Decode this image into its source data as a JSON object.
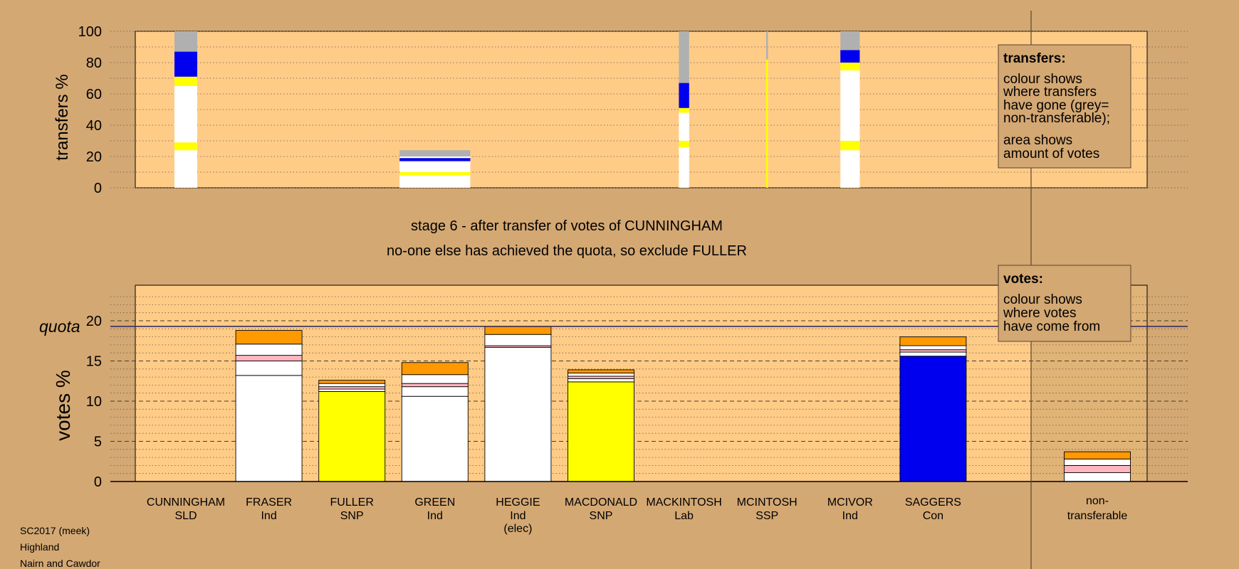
{
  "colors": {
    "page_bg": "#d4a873",
    "plot_bg": "#ffcc88",
    "legend_bg": "#d4a873",
    "quota_line": "#3a2d5c",
    "grey_nontransferable": "#b0b0b0",
    "blue_con": "#0000ee",
    "yellow_snp": "#ffff00",
    "white_ind": "#ffffff",
    "orange": "#ff9900",
    "pink": "#ffb6c1"
  },
  "headline": {
    "line1": "stage 6 - after transfer of votes of CUNNINGHAM",
    "line2": "no-one else has achieved the quota, so exclude FULLER"
  },
  "legend_transfers": {
    "title": "transfers:",
    "lines": [
      "colour shows",
      "where transfers",
      "have gone (grey=",
      "non-transferable);",
      "area shows",
      "amount of votes"
    ]
  },
  "legend_votes": {
    "title": "votes:",
    "lines": [
      "colour shows",
      "where votes",
      "have come from"
    ]
  },
  "quota_label": "quota",
  "candidates": [
    {
      "name": "CUNNINGHAM",
      "party": "SLD",
      "note": ""
    },
    {
      "name": "FRASER",
      "party": "Ind",
      "note": ""
    },
    {
      "name": "FULLER",
      "party": "SNP",
      "note": ""
    },
    {
      "name": "GREEN",
      "party": "Ind",
      "note": ""
    },
    {
      "name": "HEGGIE",
      "party": "Ind",
      "note": "(elec)"
    },
    {
      "name": "MACDONALD",
      "party": "SNP",
      "note": ""
    },
    {
      "name": "MACKINTOSH",
      "party": "Lab",
      "note": ""
    },
    {
      "name": "MCINTOSH",
      "party": "SSP",
      "note": ""
    },
    {
      "name": "MCIVOR",
      "party": "Ind",
      "note": ""
    },
    {
      "name": "SAGGERS",
      "party": "Con",
      "note": ""
    }
  ],
  "nontransferable_label": {
    "line1": "non-",
    "line2": "transferable"
  },
  "footer": [
    "SC2017 (meek)",
    "Highland",
    "Nairn and Cawdor"
  ],
  "chart_data": [
    {
      "type": "bar",
      "stacked": true,
      "ylabel": "transfers %",
      "ylim": [
        0,
        100
      ],
      "yticks": [
        0,
        20,
        40,
        60,
        80,
        100
      ],
      "grid": "dotted, every 10",
      "bars": [
        {
          "name": "CUNNINGHAM",
          "width": 1.0,
          "segments": [
            {
              "color": "white",
              "from": 0,
              "to": 24
            },
            {
              "color": "yellow",
              "from": 24,
              "to": 29
            },
            {
              "color": "white",
              "from": 29,
              "to": 65
            },
            {
              "color": "yellow",
              "from": 65,
              "to": 71
            },
            {
              "color": "blue",
              "from": 71,
              "to": 87
            },
            {
              "color": "grey",
              "from": 87,
              "to": 100
            }
          ]
        },
        {
          "name": "GREEN",
          "width": 3.1,
          "segments": [
            {
              "color": "white",
              "from": 0,
              "to": 8
            },
            {
              "color": "yellow",
              "from": 8,
              "to": 10
            },
            {
              "color": "white",
              "from": 10,
              "to": 17
            },
            {
              "color": "blue",
              "from": 17,
              "to": 19
            },
            {
              "color": "white",
              "from": 19,
              "to": 20
            },
            {
              "color": "grey",
              "from": 20,
              "to": 24
            }
          ]
        },
        {
          "name": "MACKINTOSH",
          "width": 0.45,
          "segments": [
            {
              "color": "white",
              "from": 0,
              "to": 26
            },
            {
              "color": "yellow",
              "from": 26,
              "to": 30
            },
            {
              "color": "white",
              "from": 30,
              "to": 48
            },
            {
              "color": "yellow",
              "from": 48,
              "to": 51
            },
            {
              "color": "blue",
              "from": 51,
              "to": 67
            },
            {
              "color": "grey",
              "from": 67,
              "to": 100
            }
          ]
        },
        {
          "name": "MCINTOSH",
          "width": 0.08,
          "segments": [
            {
              "color": "yellow",
              "from": 0,
              "to": 82
            },
            {
              "color": "grey",
              "from": 82,
              "to": 100
            }
          ]
        },
        {
          "name": "MCIVOR",
          "width": 0.85,
          "segments": [
            {
              "color": "white",
              "from": 0,
              "to": 24
            },
            {
              "color": "yellow",
              "from": 24,
              "to": 30
            },
            {
              "color": "white",
              "from": 30,
              "to": 75
            },
            {
              "color": "yellow",
              "from": 75,
              "to": 80
            },
            {
              "color": "blue",
              "from": 80,
              "to": 88
            },
            {
              "color": "grey",
              "from": 88,
              "to": 100
            }
          ]
        }
      ]
    },
    {
      "type": "bar",
      "stacked": true,
      "ylabel": "votes %",
      "ylim": [
        0,
        20
      ],
      "yticks": [
        0,
        5,
        10,
        15,
        20
      ],
      "quota": 19.3,
      "grid": "dashed every 5, dotted every 1",
      "bars": [
        {
          "name": "FRASER",
          "segments": [
            {
              "color": "white",
              "from": 0,
              "to": 13.2
            },
            {
              "color": "white",
              "from": 13.2,
              "to": 15
            },
            {
              "color": "pink",
              "from": 15,
              "to": 15.7
            },
            {
              "color": "white",
              "from": 15.7,
              "to": 17.1
            },
            {
              "color": "orange",
              "from": 17.1,
              "to": 18.8
            }
          ]
        },
        {
          "name": "FULLER",
          "segments": [
            {
              "color": "yellow",
              "from": 0,
              "to": 11.2
            },
            {
              "color": "white",
              "from": 11.2,
              "to": 11.5
            },
            {
              "color": "pink",
              "from": 11.5,
              "to": 11.8
            },
            {
              "color": "white",
              "from": 11.8,
              "to": 12.2
            },
            {
              "color": "orange",
              "from": 12.2,
              "to": 12.6
            }
          ]
        },
        {
          "name": "GREEN",
          "segments": [
            {
              "color": "white",
              "from": 0,
              "to": 10.6
            },
            {
              "color": "white",
              "from": 10.6,
              "to": 11.8
            },
            {
              "color": "pink",
              "from": 11.8,
              "to": 12.2
            },
            {
              "color": "white",
              "from": 12.2,
              "to": 13.3
            },
            {
              "color": "orange",
              "from": 13.3,
              "to": 14.8
            }
          ]
        },
        {
          "name": "HEGGIE",
          "segments": [
            {
              "color": "white",
              "from": 0,
              "to": 16.7
            },
            {
              "color": "pink",
              "from": 16.7,
              "to": 16.9
            },
            {
              "color": "white",
              "from": 16.9,
              "to": 18.3
            },
            {
              "color": "orange",
              "from": 18.3,
              "to": 19.3
            }
          ]
        },
        {
          "name": "MACDONALD",
          "segments": [
            {
              "color": "yellow",
              "from": 0,
              "to": 12.4
            },
            {
              "color": "white",
              "from": 12.4,
              "to": 12.8
            },
            {
              "color": "pink",
              "from": 12.8,
              "to": 13.1
            },
            {
              "color": "white",
              "from": 13.1,
              "to": 13.5
            },
            {
              "color": "orange",
              "from": 13.5,
              "to": 13.9
            }
          ]
        },
        {
          "name": "SAGGERS",
          "segments": [
            {
              "color": "blue",
              "from": 0,
              "to": 15.6
            },
            {
              "color": "white",
              "from": 15.6,
              "to": 16.1
            },
            {
              "color": "pink",
              "from": 16.1,
              "to": 16.4
            },
            {
              "color": "white",
              "from": 16.4,
              "to": 16.9
            },
            {
              "color": "orange",
              "from": 16.9,
              "to": 18
            }
          ]
        },
        {
          "name": "non-transferable",
          "segments": [
            {
              "color": "white",
              "from": 0,
              "to": 1.1
            },
            {
              "color": "pink",
              "from": 1.1,
              "to": 2
            },
            {
              "color": "white",
              "from": 2,
              "to": 2.8
            },
            {
              "color": "orange",
              "from": 2.8,
              "to": 3.7
            }
          ]
        }
      ]
    }
  ]
}
